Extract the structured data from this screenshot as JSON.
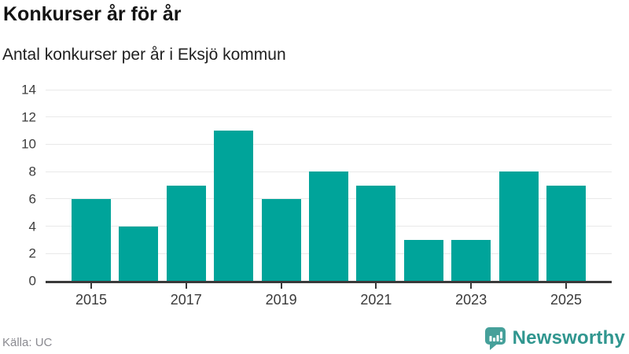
{
  "header": {
    "title": "Konkurser år för år",
    "subtitle": "Antal konkurser per år i Eksjö kommun"
  },
  "footer": {
    "source": "Källa: UC",
    "brand": "Newsworthy",
    "brand_icon": "newsworthy-speech-bubble-bar-chart-icon"
  },
  "colors": {
    "bar": "#00a49a",
    "axis_line": "#3a3a3a",
    "gridline": "#e9e9e9",
    "brand_teal": "#30968f",
    "icon_teal": "#46a09a",
    "source_gray": "#8a8a90"
  },
  "chart_data": {
    "type": "bar",
    "title": "Konkurser år för år",
    "subtitle": "Antal konkurser per år i Eksjö kommun",
    "categories": [
      2015,
      2016,
      2017,
      2018,
      2019,
      2020,
      2021,
      2022,
      2023,
      2024,
      2025
    ],
    "values": [
      6,
      4,
      7,
      11,
      6,
      8,
      7,
      3,
      3,
      8,
      7
    ],
    "xlabel": "",
    "ylabel": "",
    "ylim": [
      0,
      14
    ],
    "y_ticks": [
      0,
      2,
      4,
      6,
      8,
      10,
      12,
      14
    ],
    "x_tick_labels": [
      "2015",
      "2017",
      "2019",
      "2021",
      "2023",
      "2025"
    ],
    "x_tick_indices": [
      0,
      2,
      4,
      6,
      8,
      10
    ],
    "grid": true,
    "legend": false,
    "bar_color": "#00a49a"
  }
}
